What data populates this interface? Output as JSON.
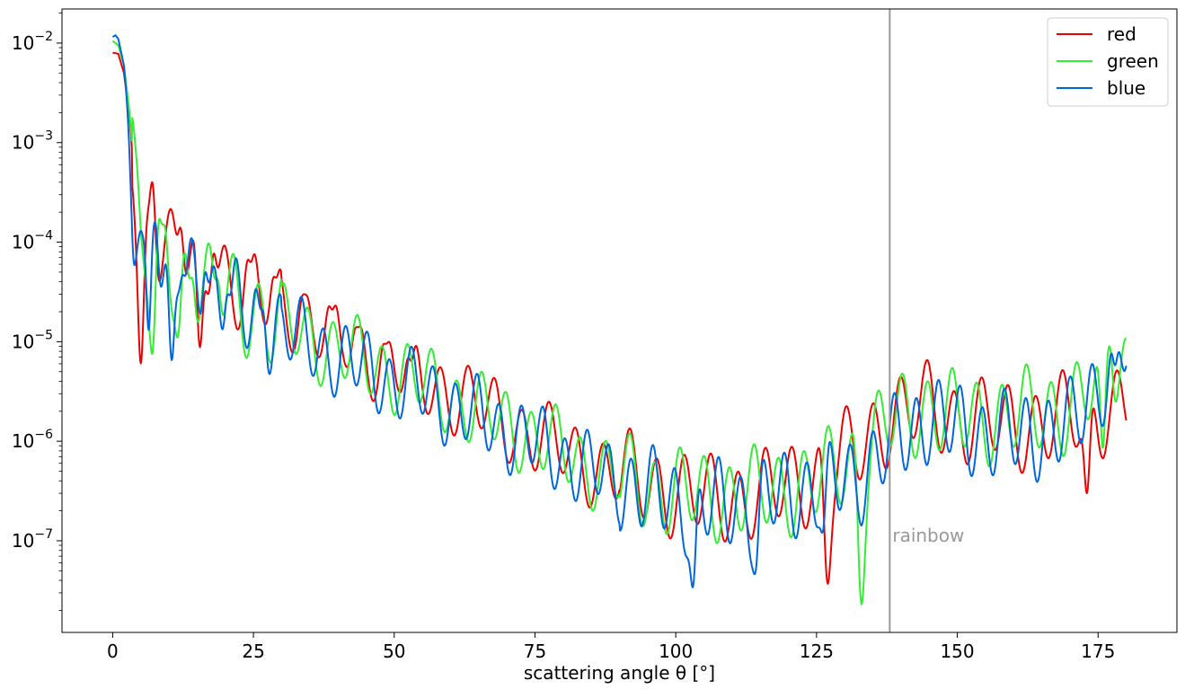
{
  "chart_data": {
    "type": "line",
    "xlabel": "scattering angle θ [°]",
    "xlim": [
      -9,
      189
    ],
    "ylim": [
      1.2e-08,
      0.022
    ],
    "yscale": "log",
    "xticks": [
      0,
      25,
      50,
      75,
      100,
      125,
      150,
      175
    ],
    "xtick_labels": [
      "0",
      "25",
      "50",
      "75",
      "100",
      "125",
      "150",
      "175"
    ],
    "yticks": [
      1e-07,
      1e-06,
      1e-05,
      0.0001,
      0.001,
      0.01
    ],
    "ytick_labels": [
      {
        "base": "10",
        "exp": "−7"
      },
      {
        "base": "10",
        "exp": "−6"
      },
      {
        "base": "10",
        "exp": "−5"
      },
      {
        "base": "10",
        "exp": "−4"
      },
      {
        "base": "10",
        "exp": "−3"
      },
      {
        "base": "10",
        "exp": "−2"
      }
    ],
    "grid": false,
    "legend_position": "top-right",
    "vline": {
      "x": 138,
      "color": "#999999",
      "label": "rainbow"
    },
    "series": [
      {
        "name": "red",
        "color": "#ee0000",
        "trend": [
          [
            0,
            0.008
          ],
          [
            1,
            0.0078
          ],
          [
            2,
            0.005
          ],
          [
            3,
            0.0018
          ],
          [
            4,
            0.0004
          ],
          [
            5,
            0.00015
          ],
          [
            8,
            0.0001
          ],
          [
            15,
            6e-05
          ],
          [
            25,
            3.5e-05
          ],
          [
            35,
            1.6e-05
          ],
          [
            45,
            7.5e-06
          ],
          [
            55,
            4.2e-06
          ],
          [
            65,
            2.2e-06
          ],
          [
            75,
            1.1e-06
          ],
          [
            85,
            5.8e-07
          ],
          [
            95,
            3.7e-07
          ],
          [
            105,
            2.6e-07
          ],
          [
            115,
            2.8e-07
          ],
          [
            125,
            4.5e-07
          ],
          [
            133,
            9e-07
          ],
          [
            138,
            1.8e-06
          ],
          [
            145,
            2.2e-06
          ],
          [
            150,
            1.7e-06
          ],
          [
            160,
            1.4e-06
          ],
          [
            170,
            1.7e-06
          ],
          [
            180,
            2.5e-06
          ]
        ],
        "dips": [
          [
            5,
            6e-06
          ],
          [
            15.5,
            8.8e-06
          ],
          [
            127,
            3.7e-08
          ],
          [
            173,
            3e-07
          ]
        ],
        "peaks": [
          [
            7,
            0.0004
          ],
          [
            12,
            0.00014
          ],
          [
            18,
            7.7e-05
          ],
          [
            24.5,
            6.3e-05
          ],
          [
            29,
            4.4e-05
          ],
          [
            34,
            3e-05
          ],
          [
            39,
            2.1e-05
          ],
          [
            43.5,
            1.4e-05
          ],
          [
            48.5,
            9.5e-06
          ],
          [
            53,
            6.4e-06
          ]
        ]
      },
      {
        "name": "green",
        "color": "#33ee33",
        "trend": [
          [
            0,
            0.0105
          ],
          [
            1,
            0.0095
          ],
          [
            2,
            0.006
          ],
          [
            3,
            0.002
          ],
          [
            4,
            0.0004
          ],
          [
            5,
            0.00012
          ],
          [
            8,
            7.5e-05
          ],
          [
            15,
            4e-05
          ],
          [
            25,
            2e-05
          ],
          [
            35,
            1.1e-05
          ],
          [
            45,
            6.2e-06
          ],
          [
            55,
            3.8e-06
          ],
          [
            65,
            2e-06
          ],
          [
            75,
            1.1e-06
          ],
          [
            85,
            5.5e-07
          ],
          [
            95,
            3.5e-07
          ],
          [
            105,
            2.8e-07
          ],
          [
            115,
            3e-07
          ],
          [
            125,
            3.8e-07
          ],
          [
            133,
            8e-07
          ],
          [
            138,
            1.6e-06
          ],
          [
            145,
            2.2e-06
          ],
          [
            150,
            1.7e-06
          ],
          [
            160,
            1.8e-06
          ],
          [
            170,
            2.2e-06
          ],
          [
            180,
            6e-06
          ]
        ],
        "dips": [
          [
            7,
            7.5e-06
          ],
          [
            11.5,
            1.1e-05
          ],
          [
            133,
            2.3e-08
          ],
          [
            176,
            5.5e-07
          ]
        ],
        "peaks": [
          [
            9,
            0.00015
          ],
          [
            14,
            4.4e-05
          ],
          [
            18.5,
            4.3e-05
          ],
          [
            177,
            9e-06
          ]
        ]
      },
      {
        "name": "blue",
        "color": "#0066dd",
        "trend": [
          [
            0,
            0.0115
          ],
          [
            0.5,
            0.012
          ],
          [
            1,
            0.011
          ],
          [
            2,
            0.006
          ],
          [
            3,
            0.0015
          ],
          [
            4,
            0.0003
          ],
          [
            5,
            0.0001
          ],
          [
            8,
            7e-05
          ],
          [
            15,
            3.5e-05
          ],
          [
            25,
            1.7e-05
          ],
          [
            35,
            9.5e-06
          ],
          [
            45,
            5.2e-06
          ],
          [
            55,
            3.1e-06
          ],
          [
            65,
            1.7e-06
          ],
          [
            75,
            9.5e-07
          ],
          [
            85,
            5e-07
          ],
          [
            95,
            3e-07
          ],
          [
            105,
            2.2e-07
          ],
          [
            115,
            2.5e-07
          ],
          [
            125,
            3.5e-07
          ],
          [
            133,
            4.5e-07
          ],
          [
            138,
            9e-07
          ],
          [
            145,
            1.8e-06
          ],
          [
            150,
            1.3e-06
          ],
          [
            160,
            1.1e-06
          ],
          [
            170,
            1.4e-06
          ],
          [
            180,
            1e-05
          ]
        ],
        "dips": [
          [
            4,
            5e-05
          ],
          [
            6.5,
            7e-06
          ],
          [
            10.5,
            6.5e-06
          ],
          [
            103,
            3.4e-08
          ],
          [
            114,
            4.6e-08
          ],
          [
            126,
            1.2e-07
          ]
        ],
        "peaks": [
          [
            5,
            0.00013
          ],
          [
            7.5,
            0.00016
          ],
          [
            12.5,
            4.7e-05
          ],
          [
            16.5,
            5e-05
          ],
          [
            20.5,
            3e-05
          ],
          [
            26.5,
            2.1e-05
          ],
          [
            178,
            5.8e-06
          ]
        ]
      }
    ]
  }
}
